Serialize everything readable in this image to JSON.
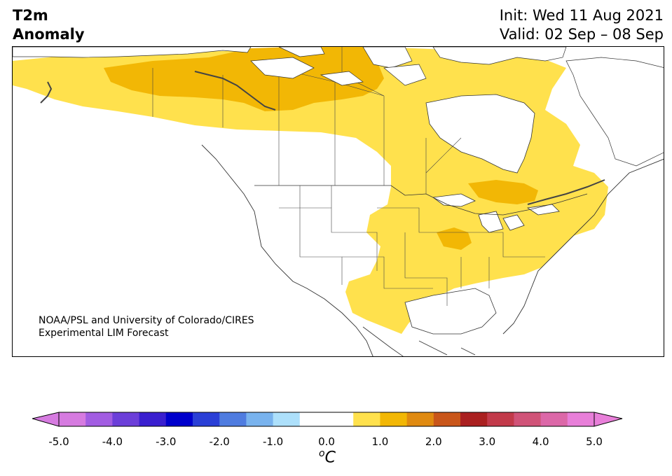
{
  "header": {
    "title_line1": "T2m",
    "title_line2": "Anomaly",
    "init": "Init: Wed 11 Aug 2021",
    "valid": "Valid: 02 Sep – 08 Sep"
  },
  "credit": {
    "line1": "NOAA/PSL and University of Colorado/CIRES",
    "line2": "Experimental LIM Forecast"
  },
  "colorbar": {
    "unit_base": "C",
    "unit_sup": "o",
    "ticks": [
      "-5.0",
      "-4.0",
      "-3.0",
      "-2.0",
      "-1.0",
      "0.0",
      "1.0",
      "2.0",
      "3.0",
      "4.0",
      "5.0"
    ],
    "low_extend_color": "#d67be0",
    "high_extend_color": "#e87fd9",
    "colors": [
      "#d67be0",
      "#a25de2",
      "#6c3fd9",
      "#3a1fcf",
      "#0000cc",
      "#2a3fd6",
      "#4f7ce0",
      "#79b3ee",
      "#ade0fb",
      "#ffffff",
      "#ffffff",
      "#ffe14d",
      "#f2b705",
      "#e08a10",
      "#c9561a",
      "#aa2020",
      "#c23a4a",
      "#d05378",
      "#dc68a8",
      "#e87fd9"
    ]
  },
  "legend_colors": {
    "anomaly_1_to_1_5": "#ffe14d",
    "anomaly_1_5_to_2": "#f2b705",
    "anomaly_2_to_2_5": "#e08a10"
  }
}
